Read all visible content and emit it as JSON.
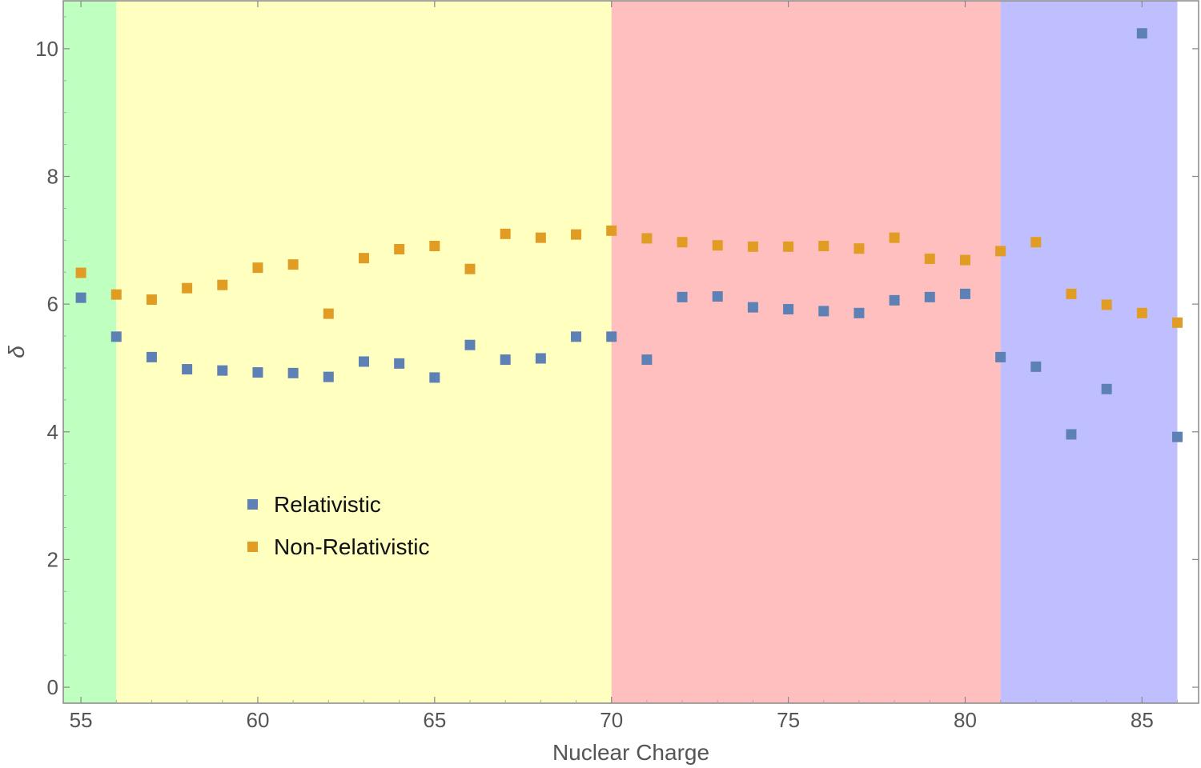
{
  "chart_data": {
    "type": "scatter",
    "xlabel": "Nuclear Charge",
    "ylabel": "δ",
    "xlim": [
      54.5,
      86.6
    ],
    "ylim": [
      -0.25,
      10.75
    ],
    "xticks": [
      55,
      60,
      65,
      70,
      75,
      80,
      85
    ],
    "yticks": [
      0,
      2,
      4,
      6,
      8,
      10
    ],
    "grid": false,
    "legend_position": "lower-left inside plot",
    "regions": [
      {
        "from": 54.5,
        "to": 56,
        "color": "#bfffbf"
      },
      {
        "from": 56,
        "to": 70,
        "color": "#ffffbf"
      },
      {
        "from": 70,
        "to": 81,
        "color": "#ffbfbf"
      },
      {
        "from": 81,
        "to": 86,
        "color": "#bfbfff"
      }
    ],
    "series": [
      {
        "name": "Relativistic",
        "color": "#5e81b5",
        "x": [
          55,
          56,
          57,
          58,
          59,
          60,
          61,
          62,
          63,
          64,
          65,
          66,
          67,
          68,
          69,
          70,
          71,
          72,
          73,
          74,
          75,
          76,
          77,
          78,
          79,
          80,
          81,
          82,
          83,
          84,
          85,
          86
        ],
        "y": [
          6.1,
          5.49,
          5.17,
          4.98,
          4.96,
          4.93,
          4.92,
          4.86,
          5.1,
          5.07,
          4.85,
          5.36,
          5.13,
          5.15,
          5.49,
          5.49,
          5.13,
          6.11,
          6.12,
          5.95,
          5.92,
          5.89,
          5.86,
          6.06,
          6.11,
          6.16,
          5.17,
          5.02,
          3.96,
          4.67,
          10.24,
          3.92
        ]
      },
      {
        "name": "Non-Relativistic",
        "color": "#e19c24",
        "x": [
          55,
          56,
          57,
          58,
          59,
          60,
          61,
          62,
          63,
          64,
          65,
          66,
          67,
          68,
          69,
          70,
          71,
          72,
          73,
          74,
          75,
          76,
          77,
          78,
          79,
          80,
          81,
          82,
          83,
          84,
          85,
          86
        ],
        "y": [
          6.49,
          6.15,
          6.07,
          6.25,
          6.3,
          6.57,
          6.62,
          5.85,
          6.72,
          6.86,
          6.91,
          6.55,
          7.1,
          7.04,
          7.09,
          7.15,
          7.03,
          6.97,
          6.92,
          6.9,
          6.9,
          6.91,
          6.87,
          7.04,
          6.71,
          6.69,
          6.83,
          6.97,
          6.16,
          5.99,
          5.86,
          5.71
        ]
      }
    ]
  }
}
